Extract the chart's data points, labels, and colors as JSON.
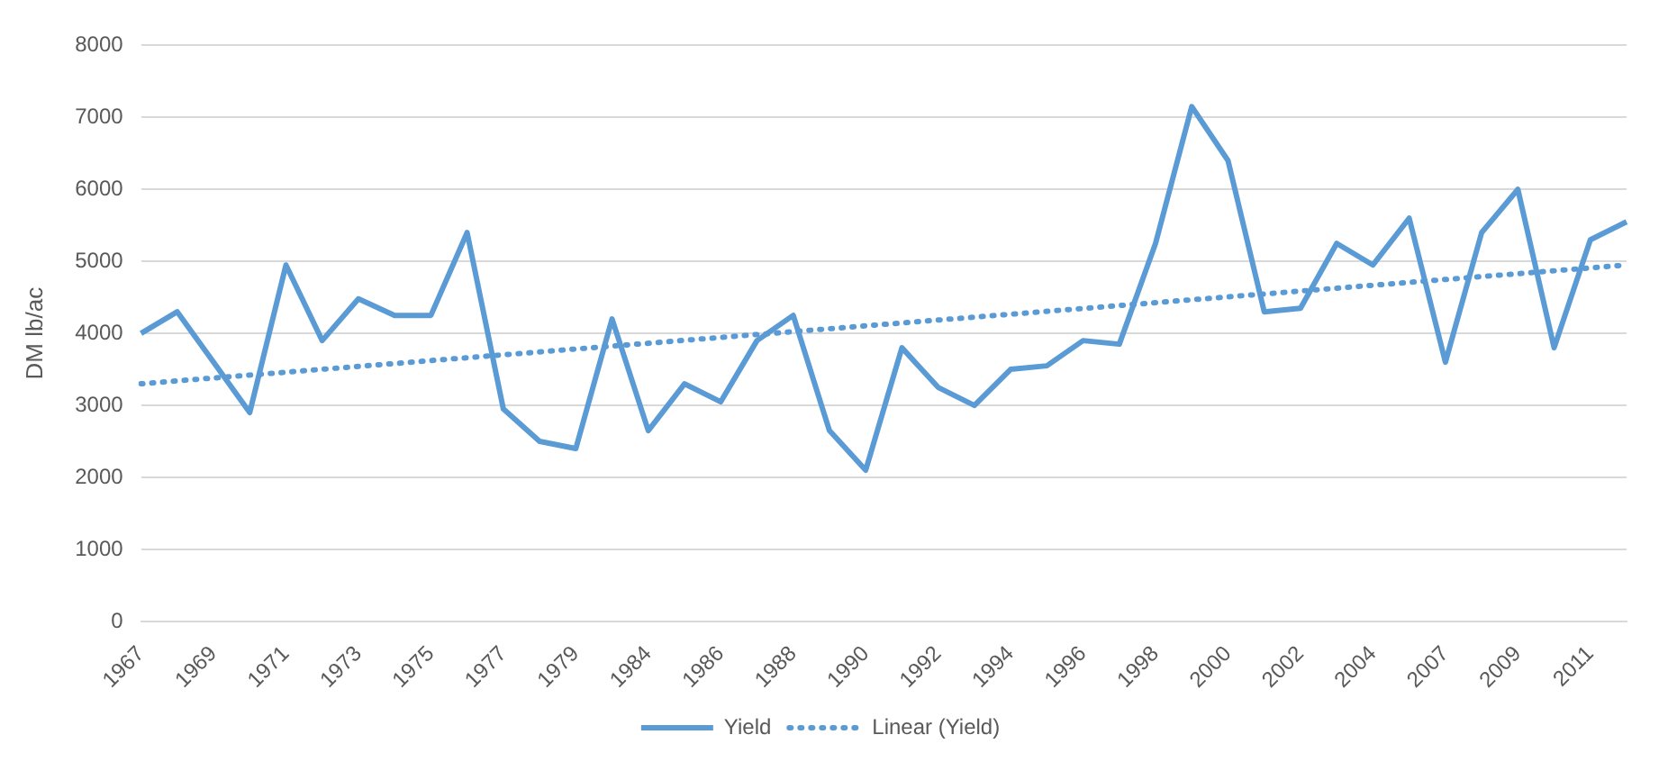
{
  "chart_data": {
    "type": "line",
    "ylabel": "DM lb/ac",
    "categories": [
      "1967",
      null,
      "1969",
      null,
      "1971",
      null,
      "1973",
      null,
      "1975",
      null,
      "1977",
      null,
      "1979",
      null,
      "1984",
      null,
      "1986",
      null,
      "1988",
      null,
      "1990",
      null,
      "1992",
      null,
      "1994",
      null,
      "1996",
      null,
      "1998",
      null,
      "2000",
      null,
      "2002",
      null,
      "2004",
      null,
      "2007",
      null,
      "2009",
      null,
      "2011",
      null
    ],
    "series": [
      {
        "name": "Yield",
        "color": "#5b9bd5",
        "line_style": "solid",
        "values": [
          4000,
          4300,
          3600,
          2900,
          4950,
          3900,
          4480,
          4250,
          4250,
          5400,
          2950,
          2500,
          2400,
          4200,
          2650,
          3300,
          3050,
          3900,
          4250,
          2650,
          2100,
          3800,
          3250,
          3000,
          3500,
          3550,
          3900,
          3850,
          5250,
          7150,
          6400,
          4300,
          4350,
          5250,
          4950,
          5600,
          3600,
          5400,
          6000,
          3800,
          5300,
          5550
        ]
      },
      {
        "name": "Linear (Yield)",
        "color": "#5b9bd5",
        "line_style": "dotted",
        "values": [
          3300,
          null,
          null,
          null,
          null,
          null,
          null,
          null,
          null,
          null,
          null,
          null,
          null,
          null,
          null,
          null,
          null,
          null,
          null,
          null,
          null,
          null,
          null,
          null,
          null,
          null,
          null,
          null,
          null,
          null,
          null,
          null,
          null,
          null,
          null,
          null,
          null,
          null,
          null,
          null,
          null,
          4950
        ]
      }
    ],
    "ylim": [
      0,
      8000
    ],
    "yticks": [
      0,
      1000,
      2000,
      3000,
      4000,
      5000,
      6000,
      7000,
      8000
    ],
    "grid": "y",
    "legend": "bottom",
    "marker": "none"
  }
}
